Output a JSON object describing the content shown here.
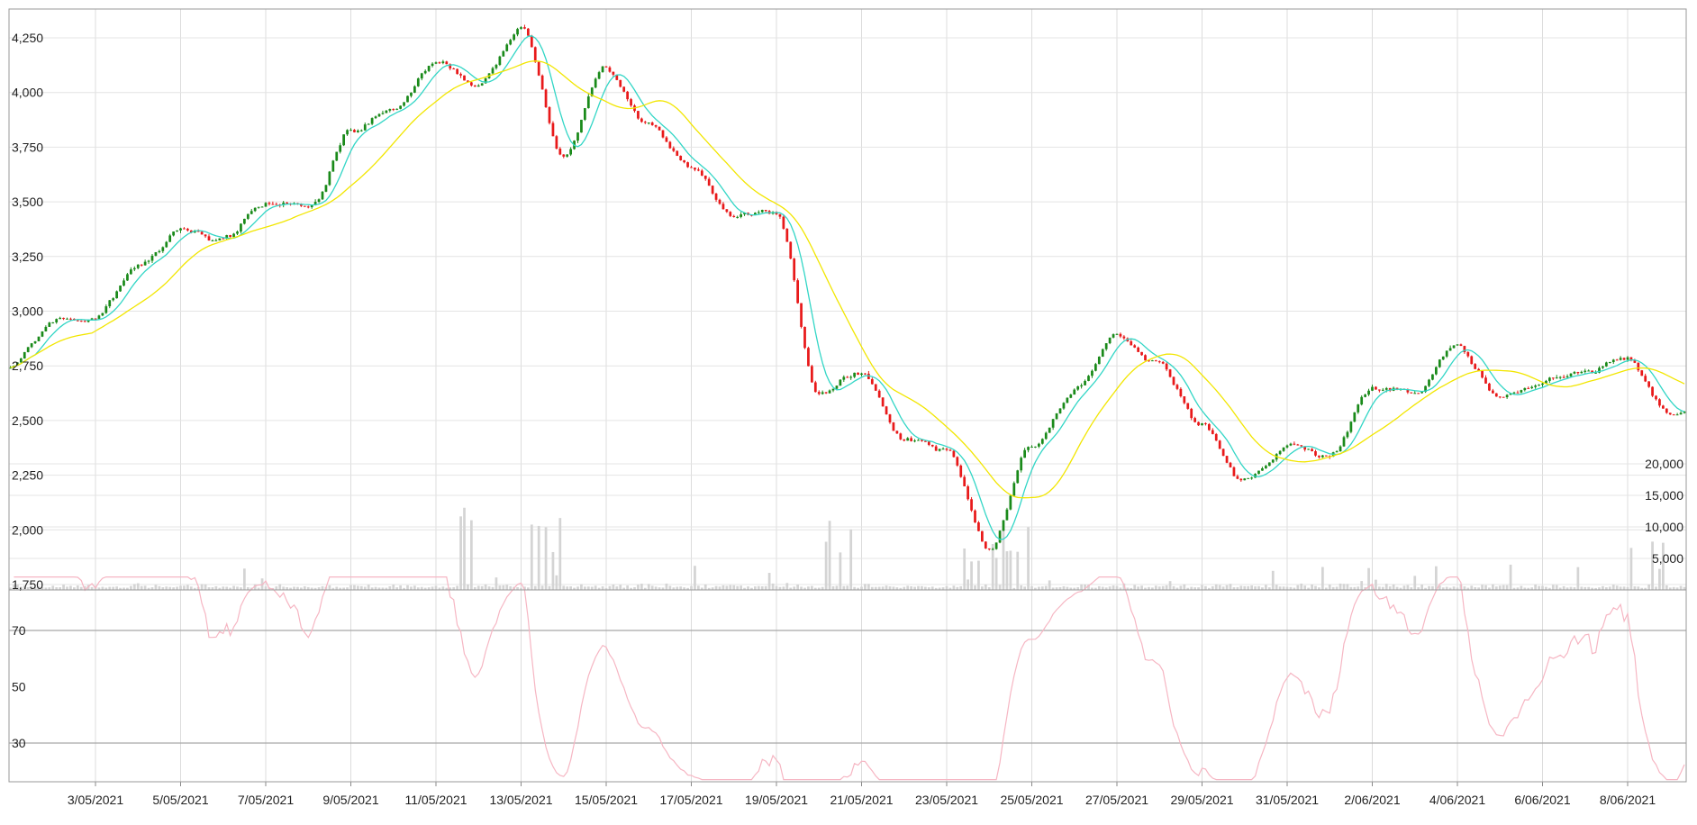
{
  "chart_data": [
    {
      "type": "candlestick",
      "title": "",
      "xlabel": "",
      "ylabel": "",
      "ylim": [
        1750,
        4350
      ],
      "y_ticks": [
        "1,750",
        "2,000",
        "2,250",
        "2,500",
        "2,750",
        "3,000",
        "3,250",
        "3,500",
        "3,750",
        "4,000",
        "4,250"
      ],
      "x_ticks": [
        "3/05/2021",
        "5/05/2021",
        "7/05/2021",
        "9/05/2021",
        "11/05/2021",
        "13/05/2021",
        "15/05/2021",
        "17/05/2021",
        "19/05/2021",
        "21/05/2021",
        "23/05/2021",
        "25/05/2021",
        "27/05/2021",
        "29/05/2021",
        "31/05/2021",
        "2/06/2021",
        "4/06/2021",
        "6/06/2021",
        "8/06/2021"
      ],
      "x_range": [
        "2021-05-01",
        "2021-06-10"
      ],
      "grid": true,
      "colors": {
        "up": "#1a8a1a",
        "down": "#e8191a",
        "ma_short": "#33d6c6",
        "ma_long": "#f2e600"
      },
      "price_path": [
        [
          "2021-05-01",
          2740
        ],
        [
          "2021-05-02",
          2940
        ],
        [
          "2021-05-03",
          2960
        ],
        [
          "2021-05-04",
          3200
        ],
        [
          "2021-05-05",
          3380
        ],
        [
          "2021-05-06",
          3330
        ],
        [
          "2021-05-07",
          3480
        ],
        [
          "2021-05-08",
          3500
        ],
        [
          "2021-05-09",
          3850
        ],
        [
          "2021-05-10",
          3920
        ],
        [
          "2021-05-11",
          4150
        ],
        [
          "2021-05-12",
          4050
        ],
        [
          "2021-05-13",
          4320
        ],
        [
          "2021-05-14",
          3720
        ],
        [
          "2021-05-15",
          4120
        ],
        [
          "2021-05-16",
          3870
        ],
        [
          "2021-05-17",
          3680
        ],
        [
          "2021-05-18",
          3450
        ],
        [
          "2021-05-19",
          3480
        ],
        [
          "2021-05-20",
          2640
        ],
        [
          "2021-05-21",
          2750
        ],
        [
          "2021-05-22",
          2420
        ],
        [
          "2021-05-23",
          2360
        ],
        [
          "2021-05-24",
          1900
        ],
        [
          "2021-05-25",
          2380
        ],
        [
          "2021-05-26",
          2620
        ],
        [
          "2021-05-27",
          2860
        ],
        [
          "2021-05-28",
          2760
        ],
        [
          "2021-05-29",
          2480
        ],
        [
          "2021-05-30",
          2220
        ],
        [
          "2021-05-31",
          2390
        ],
        [
          "2021-06-01",
          2340
        ],
        [
          "2021-06-02",
          2650
        ],
        [
          "2021-06-03",
          2630
        ],
        [
          "2021-06-04",
          2840
        ],
        [
          "2021-06-05",
          2610
        ],
        [
          "2021-06-06",
          2700
        ],
        [
          "2021-06-07",
          2720
        ],
        [
          "2021-06-08",
          2780
        ],
        [
          "2021-06-09",
          2500
        ],
        [
          "2021-06-10",
          2500
        ]
      ],
      "series": [
        {
          "values": "candles"
        },
        {
          "values": "short moving average"
        },
        {
          "values": "long moving average"
        }
      ]
    },
    {
      "type": "bar",
      "title": "",
      "xlabel": "",
      "ylabel": "",
      "ylim": [
        0,
        25000
      ],
      "y_ticks": [
        "5,000",
        "10,000",
        "15,000",
        "20,000"
      ],
      "color": "#d4d4d4",
      "volume_peaks": [
        [
          "2021-05-11",
          15000
        ],
        [
          "2021-05-13",
          14000
        ],
        [
          "2021-05-20",
          12000
        ],
        [
          "2021-05-23",
          9000
        ],
        [
          "2021-05-24",
          10000
        ],
        [
          "2021-06-08",
          8000
        ]
      ]
    },
    {
      "type": "line",
      "title": "",
      "xlabel": "",
      "ylabel": "",
      "ylim": [
        15,
        90
      ],
      "y_ticks": [
        "30",
        "50",
        "70"
      ],
      "reference_lines": [
        30,
        70
      ],
      "color": "#f6b6c3"
    }
  ]
}
